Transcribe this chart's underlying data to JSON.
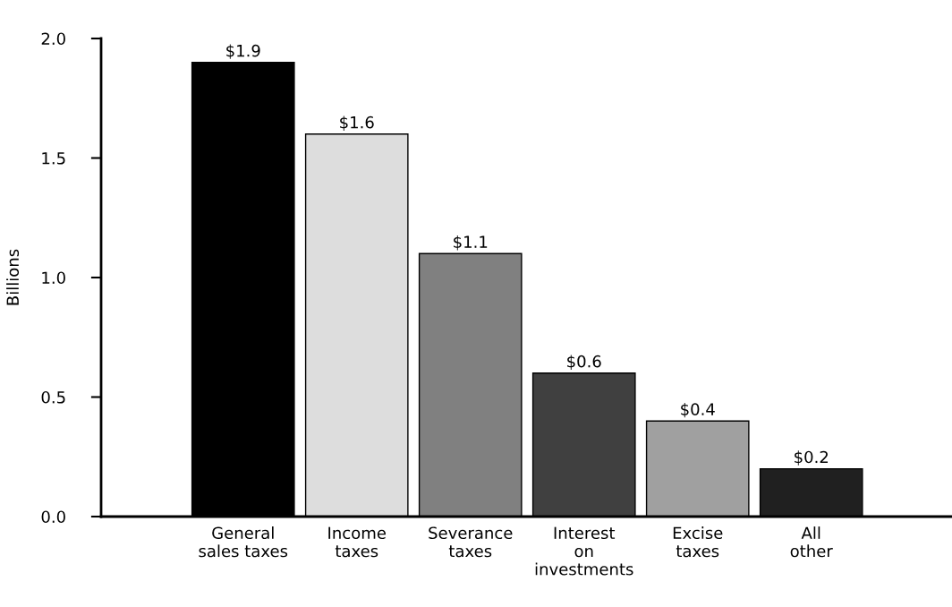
{
  "chart_data": {
    "type": "bar",
    "ylabel": "Billions",
    "categories": [
      "General\nsales taxes",
      "Income\ntaxes",
      "Severance\ntaxes",
      "Interest\non\ninvestments",
      "Excise\ntaxes",
      "All\nother"
    ],
    "values": [
      1.9,
      1.6,
      1.1,
      0.6,
      0.4,
      0.2
    ],
    "colors": [
      "#000000",
      "#dddddd",
      "#808080",
      "#404040",
      "#a0a0a0",
      "#202020"
    ],
    "value_labels": [
      "$1.9",
      "$1.6",
      "$1.1",
      "$0.6",
      "$0.4",
      "$0.2"
    ],
    "ylim": [
      0,
      2.0
    ],
    "yticks": [
      {
        "value": 0,
        "label": "0.0"
      },
      {
        "value": 0.5,
        "label": "0.5"
      },
      {
        "value": 1.0,
        "label": "1.0"
      },
      {
        "value": 1.5,
        "label": "1.5"
      },
      {
        "value": 2.0,
        "label": "2.0"
      }
    ],
    "grid": false,
    "legend": false
  }
}
